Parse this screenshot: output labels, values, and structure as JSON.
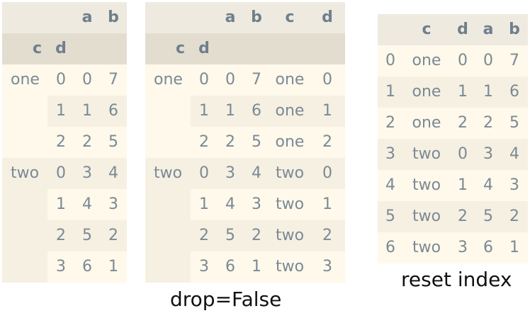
{
  "table1": {
    "header1": [
      "",
      "",
      "a",
      "b"
    ],
    "header2": [
      "c",
      "d",
      "",
      ""
    ],
    "groups": [
      "one",
      "two"
    ],
    "rows": [
      [
        "one",
        "0",
        "0",
        "7"
      ],
      [
        "",
        "1",
        "1",
        "6"
      ],
      [
        "",
        "2",
        "2",
        "5"
      ],
      [
        "two",
        "0",
        "3",
        "4"
      ],
      [
        "",
        "1",
        "4",
        "3"
      ],
      [
        "",
        "2",
        "5",
        "2"
      ],
      [
        "",
        "3",
        "6",
        "1"
      ]
    ]
  },
  "table2": {
    "header1": [
      "",
      "",
      "a",
      "b",
      "c",
      "d"
    ],
    "header2": [
      "c",
      "d",
      "",
      "",
      "",
      ""
    ],
    "rows": [
      [
        "one",
        "0",
        "0",
        "7",
        "one",
        "0"
      ],
      [
        "",
        "1",
        "1",
        "6",
        "one",
        "1"
      ],
      [
        "",
        "2",
        "2",
        "5",
        "one",
        "2"
      ],
      [
        "two",
        "0",
        "3",
        "4",
        "two",
        "0"
      ],
      [
        "",
        "1",
        "4",
        "3",
        "two",
        "1"
      ],
      [
        "",
        "2",
        "5",
        "2",
        "two",
        "2"
      ],
      [
        "",
        "3",
        "6",
        "1",
        "two",
        "3"
      ]
    ],
    "caption": "drop=False"
  },
  "table3": {
    "header": [
      "",
      "c",
      "d",
      "a",
      "b"
    ],
    "rows": [
      [
        "0",
        "one",
        "0",
        "0",
        "7"
      ],
      [
        "1",
        "one",
        "1",
        "1",
        "6"
      ],
      [
        "2",
        "one",
        "2",
        "2",
        "5"
      ],
      [
        "3",
        "two",
        "0",
        "3",
        "4"
      ],
      [
        "4",
        "two",
        "1",
        "4",
        "3"
      ],
      [
        "5",
        "two",
        "2",
        "5",
        "2"
      ],
      [
        "6",
        "two",
        "3",
        "6",
        "1"
      ]
    ],
    "caption": "reset index"
  }
}
